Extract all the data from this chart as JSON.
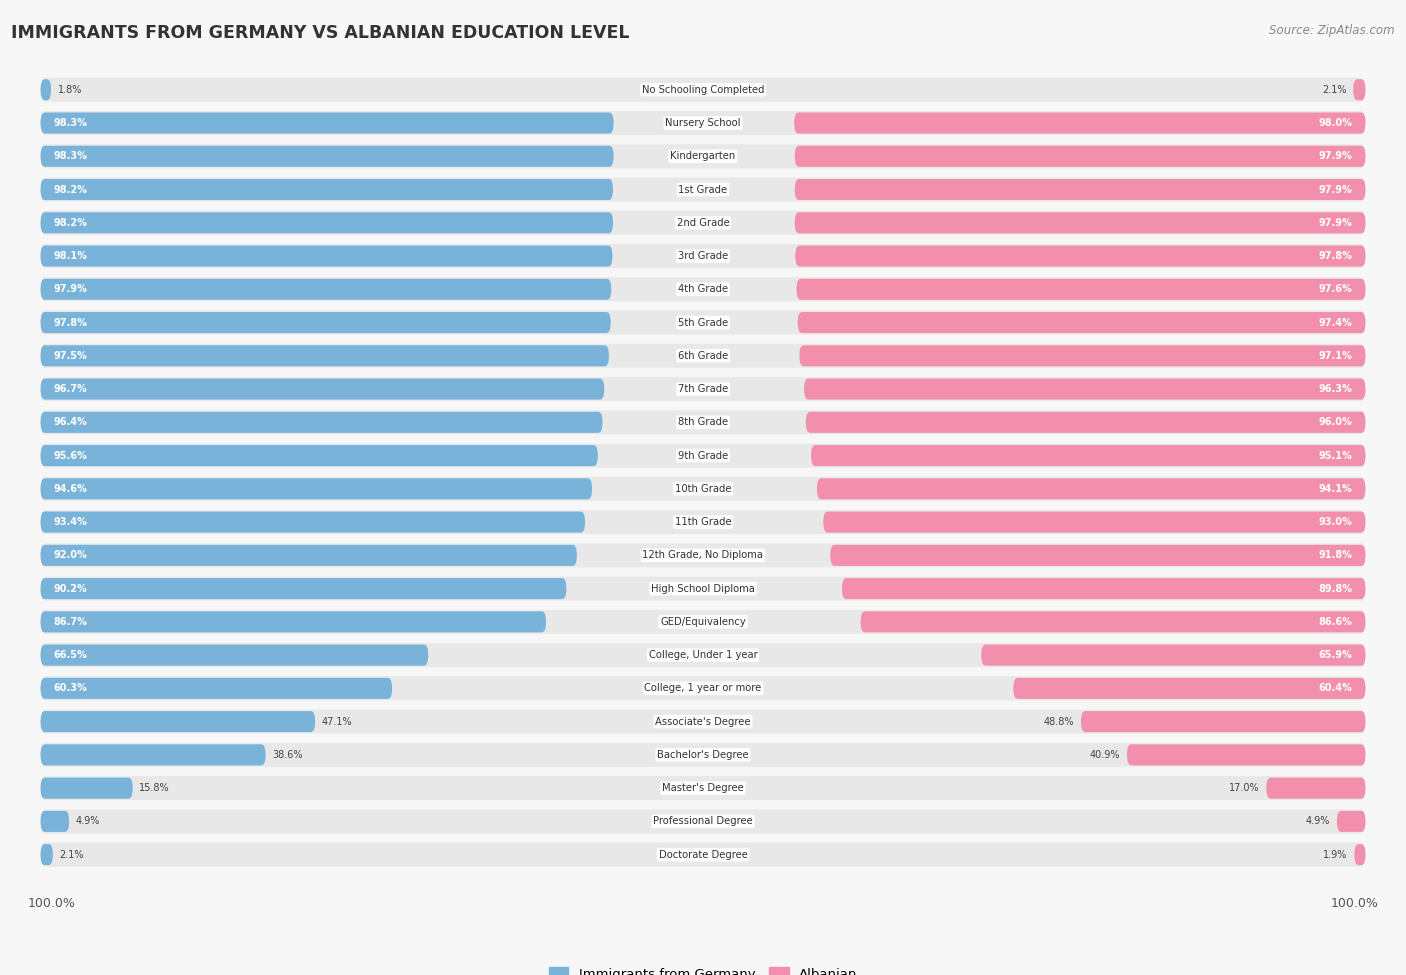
{
  "title": "IMMIGRANTS FROM GERMANY VS ALBANIAN EDUCATION LEVEL",
  "source": "Source: ZipAtlas.com",
  "categories": [
    "No Schooling Completed",
    "Nursery School",
    "Kindergarten",
    "1st Grade",
    "2nd Grade",
    "3rd Grade",
    "4th Grade",
    "5th Grade",
    "6th Grade",
    "7th Grade",
    "8th Grade",
    "9th Grade",
    "10th Grade",
    "11th Grade",
    "12th Grade, No Diploma",
    "High School Diploma",
    "GED/Equivalency",
    "College, Under 1 year",
    "College, 1 year or more",
    "Associate's Degree",
    "Bachelor's Degree",
    "Master's Degree",
    "Professional Degree",
    "Doctorate Degree"
  ],
  "germany_values": [
    1.8,
    98.3,
    98.3,
    98.2,
    98.2,
    98.1,
    97.9,
    97.8,
    97.5,
    96.7,
    96.4,
    95.6,
    94.6,
    93.4,
    92.0,
    90.2,
    86.7,
    66.5,
    60.3,
    47.1,
    38.6,
    15.8,
    4.9,
    2.1
  ],
  "albanian_values": [
    2.1,
    98.0,
    97.9,
    97.9,
    97.9,
    97.8,
    97.6,
    97.4,
    97.1,
    96.3,
    96.0,
    95.1,
    94.1,
    93.0,
    91.8,
    89.8,
    86.6,
    65.9,
    60.4,
    48.8,
    40.9,
    17.0,
    4.9,
    1.9
  ],
  "germany_color": "#7ab3d9",
  "albanian_color": "#f28fad",
  "row_bg_color": "#f0f0f0",
  "bar_container_color": "#e8e8e8",
  "fig_bg": "#f7f7f7",
  "legend_germany": "Immigrants from Germany",
  "legend_albanian": "Albanian"
}
